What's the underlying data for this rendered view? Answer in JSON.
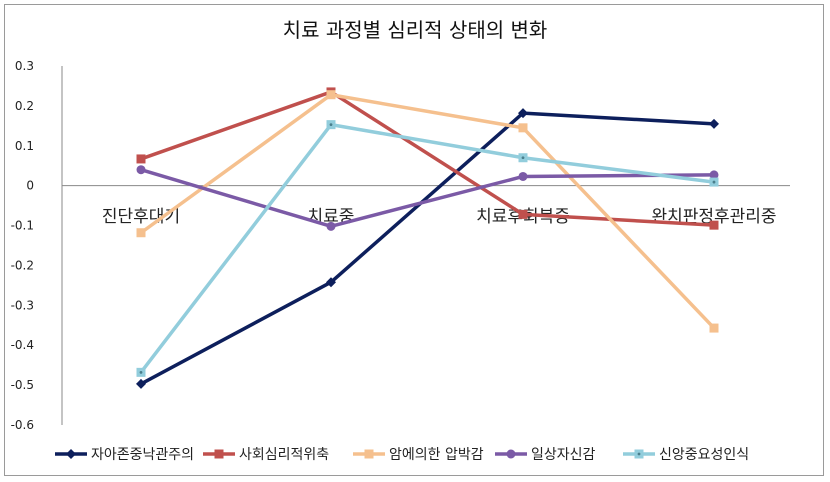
{
  "chart_data": {
    "type": "line",
    "title": "치료 과정별 심리적 상태의 변화",
    "xlabel": "",
    "ylabel": "",
    "categories": [
      "진단후대기",
      "치료중",
      "치료후회복중",
      "완치판정후관리중"
    ],
    "ylim": [
      -0.6,
      0.3
    ],
    "yticks": [
      "0.3",
      "0.2",
      "0.1",
      "0",
      "-0.1",
      "-0.2",
      "-0.3",
      "-0.4",
      "-0.5",
      "-0.6"
    ],
    "grid": false,
    "legend_position": "bottom",
    "series": [
      {
        "name": "자아존중낙관주의",
        "values": [
          -0.497,
          -0.242,
          0.182,
          0.155
        ],
        "color": "#0d1f5c",
        "marker": "diamond"
      },
      {
        "name": "사회심리적위축",
        "values": [
          0.067,
          0.235,
          -0.072,
          -0.099
        ],
        "color": "#c0504d",
        "marker": "square"
      },
      {
        "name": "암에의한 압박감",
        "values": [
          -0.118,
          0.228,
          0.145,
          -0.357
        ],
        "color": "#f5c08e",
        "marker": "square"
      },
      {
        "name": "일상자신감",
        "values": [
          0.04,
          -0.102,
          0.023,
          0.027
        ],
        "color": "#7b5aa6",
        "marker": "circle"
      },
      {
        "name": "신앙중요성인식",
        "values": [
          -0.468,
          0.153,
          0.07,
          0.009
        ],
        "color": "#92cddc",
        "marker": "asterisk-square"
      }
    ]
  }
}
